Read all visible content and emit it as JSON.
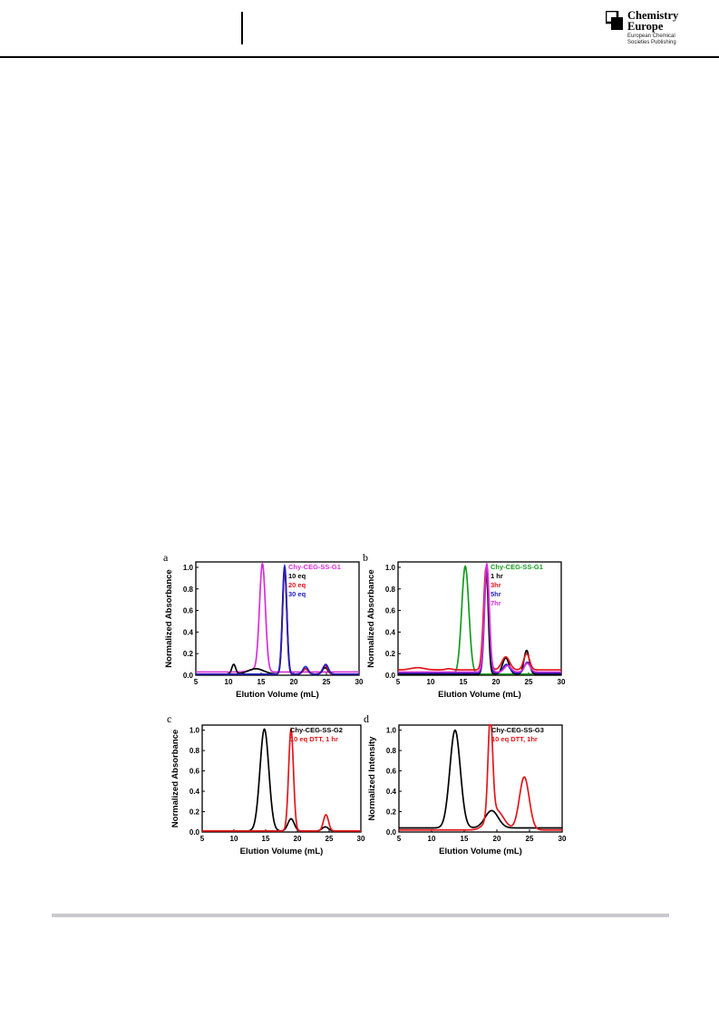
{
  "header": {
    "logo": {
      "title_line1": "Chemistry",
      "title_line2": "Europe",
      "subtitle": "European Chemical\nSocieties Publishing"
    }
  },
  "colors": {
    "black": "#000000",
    "red": "#e3161b",
    "blue": "#1d1dc4",
    "magenta": "#d92ed9",
    "green": "#169b1f",
    "rule": "#c9c9ce"
  },
  "figure": {
    "panels": [
      {
        "letter": "a"
      },
      {
        "letter": "b"
      },
      {
        "letter": "c"
      },
      {
        "letter": "d"
      }
    ]
  },
  "chart_data": [
    {
      "panel": "a",
      "type": "line",
      "xlabel": "Elution Volume (mL)",
      "ylabel": "Normalized Absorbance",
      "xlim": [
        5,
        30
      ],
      "ylim": [
        0,
        1.05
      ],
      "xticks": [
        5,
        10,
        15,
        20,
        25,
        30
      ],
      "yticks": [
        0.0,
        0.2,
        0.4,
        0.6,
        0.8,
        1.0
      ],
      "legend_position": "top-right",
      "grid": false,
      "series": [
        {
          "name": "Chy-CEG-SS-G1",
          "color": "#d92ed9",
          "baseline": 0.03,
          "peaks": [
            [
              15.2,
              1.0,
              0.45
            ],
            [
              13.8,
              0.02,
              0.8
            ]
          ]
        },
        {
          "name": "10 eq",
          "color": "#000000",
          "baseline": 0.01,
          "peaks": [
            [
              18.6,
              0.98,
              0.32
            ],
            [
              10.8,
              0.09,
              0.3
            ],
            [
              14.2,
              0.05,
              1.2
            ],
            [
              21.8,
              0.05,
              0.4
            ],
            [
              24.8,
              0.06,
              0.4
            ]
          ]
        },
        {
          "name": "20 eq",
          "color": "#e3161b",
          "baseline": 0.01,
          "peaks": [
            [
              18.6,
              0.98,
              0.33
            ],
            [
              21.8,
              0.05,
              0.4
            ],
            [
              24.8,
              0.08,
              0.4
            ]
          ]
        },
        {
          "name": "30 eq",
          "color": "#1d1dc4",
          "baseline": 0.01,
          "peaks": [
            [
              18.6,
              1.0,
              0.34
            ],
            [
              21.8,
              0.07,
              0.4
            ],
            [
              24.9,
              0.09,
              0.4
            ]
          ]
        }
      ]
    },
    {
      "panel": "b",
      "type": "line",
      "xlabel": "Elution Volume (mL)",
      "ylabel": "Normalized Absorbance",
      "xlim": [
        5,
        30
      ],
      "ylim": [
        0,
        1.05
      ],
      "xticks": [
        5,
        10,
        15,
        20,
        25,
        30
      ],
      "yticks": [
        0.0,
        0.2,
        0.4,
        0.6,
        0.8,
        1.0
      ],
      "legend_position": "top-right",
      "grid": false,
      "series": [
        {
          "name": "Chy-CEG-SS-G1",
          "color": "#169b1f",
          "baseline": 0.01,
          "peaks": [
            [
              15.3,
              1.0,
              0.55
            ]
          ]
        },
        {
          "name": "1 hr",
          "color": "#000000",
          "baseline": 0.01,
          "peaks": [
            [
              18.5,
              0.98,
              0.32
            ],
            [
              21.5,
              0.15,
              0.5
            ],
            [
              24.7,
              0.22,
              0.4
            ]
          ]
        },
        {
          "name": "3hr",
          "color": "#e3161b",
          "baseline": 0.05,
          "peaks": [
            [
              18.5,
              0.95,
              0.4
            ],
            [
              21.5,
              0.12,
              0.6
            ],
            [
              24.7,
              0.15,
              0.45
            ],
            [
              8.0,
              0.02,
              1.0
            ],
            [
              12.8,
              0.01,
              0.5
            ]
          ]
        },
        {
          "name": "5hr",
          "color": "#1d1dc4",
          "baseline": 0.02,
          "peaks": [
            [
              18.6,
              0.98,
              0.35
            ],
            [
              21.6,
              0.08,
              0.5
            ],
            [
              24.8,
              0.1,
              0.45
            ]
          ]
        },
        {
          "name": "7hr",
          "color": "#d92ed9",
          "baseline": 0.03,
          "peaks": [
            [
              18.6,
              1.0,
              0.38
            ],
            [
              21.8,
              0.06,
              0.5
            ],
            [
              24.8,
              0.08,
              0.45
            ]
          ]
        }
      ]
    },
    {
      "panel": "c",
      "type": "line",
      "xlabel": "Elution Volume (mL)",
      "ylabel": "Normalized Absorbance",
      "xlim": [
        5,
        30
      ],
      "ylim": [
        0,
        1.05
      ],
      "xticks": [
        5,
        10,
        15,
        20,
        25,
        30
      ],
      "yticks": [
        0.0,
        0.2,
        0.4,
        0.6,
        0.8,
        1.0
      ],
      "legend_position": "top-right",
      "grid": false,
      "series": [
        {
          "name": "Chy-CEG-SS-G2",
          "color": "#000000",
          "baseline": 0.01,
          "peaks": [
            [
              14.8,
              1.0,
              0.7
            ],
            [
              19.0,
              0.12,
              0.5
            ],
            [
              24.4,
              0.04,
              0.5
            ]
          ]
        },
        {
          "name": "10 eq DTT, 1 hr",
          "color": "#e3161b",
          "baseline": 0.01,
          "peaks": [
            [
              19.0,
              1.0,
              0.38
            ],
            [
              24.5,
              0.16,
              0.4
            ]
          ]
        }
      ]
    },
    {
      "panel": "d",
      "type": "line",
      "xlabel": "Elution Volume (mL)",
      "ylabel": "Normalized Intensity",
      "xlim": [
        5,
        30
      ],
      "ylim": [
        0,
        1.05
      ],
      "xticks": [
        5,
        10,
        15,
        20,
        25,
        30
      ],
      "yticks": [
        0.0,
        0.2,
        0.4,
        0.6,
        0.8,
        1.0
      ],
      "legend_position": "top-right",
      "grid": false,
      "series": [
        {
          "name": "Chy-CEG-SS-G3",
          "color": "#000000",
          "baseline": 0.04,
          "peaks": [
            [
              13.6,
              0.96,
              0.8
            ],
            [
              19.2,
              0.17,
              1.0
            ]
          ]
        },
        {
          "name": "10 eq DTT, 1hr",
          "color": "#e3161b",
          "baseline": 0.02,
          "peaks": [
            [
              19.0,
              0.97,
              0.35
            ],
            [
              19.8,
              0.2,
              1.2
            ],
            [
              24.2,
              0.52,
              0.75
            ]
          ]
        }
      ]
    }
  ]
}
